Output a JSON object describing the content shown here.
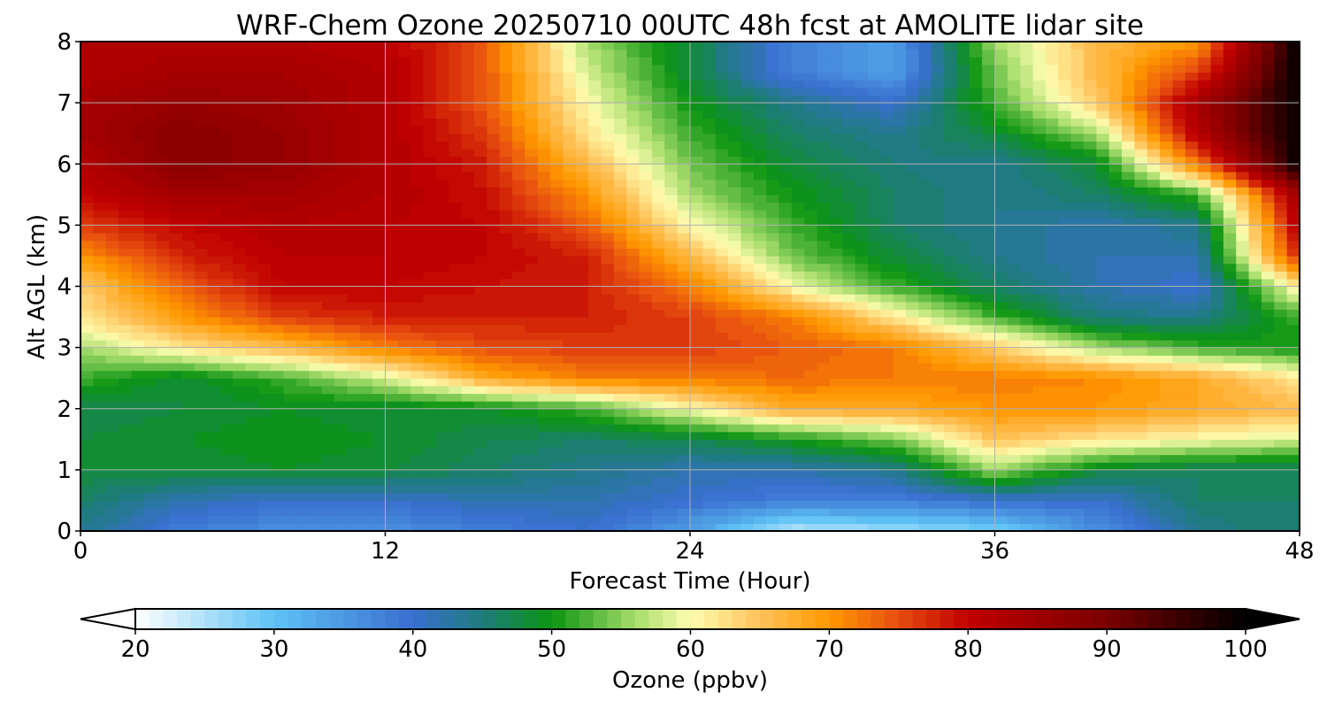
{
  "chart_data": {
    "type": "heatmap",
    "title": "WRF-Chem Ozone  20250710 00UTC 48h fcst at AMOLITE lidar site",
    "xlabel": "Forecast Time (Hour)",
    "ylabel": "Alt AGL (km)",
    "xlim": [
      0,
      48
    ],
    "ylim": [
      0,
      8
    ],
    "x_ticks": [
      0,
      12,
      24,
      36,
      48
    ],
    "y_ticks": [
      0,
      1,
      2,
      3,
      4,
      5,
      6,
      7,
      8
    ],
    "grid": true,
    "x": [
      0,
      4,
      8,
      12,
      16,
      20,
      24,
      28,
      32,
      36,
      40,
      44,
      48
    ],
    "y": [
      0,
      0.5,
      1,
      1.5,
      2,
      2.5,
      3,
      3.5,
      4,
      4.5,
      5,
      5.5,
      6,
      6.5,
      7,
      7.5,
      8
    ],
    "z": [
      [
        44,
        38,
        36,
        36,
        38,
        40,
        34,
        24,
        26,
        28,
        36,
        44,
        46
      ],
      [
        46,
        42,
        40,
        40,
        42,
        42,
        40,
        38,
        38,
        40,
        40,
        46,
        46
      ],
      [
        48,
        48,
        49,
        48,
        46,
        44,
        42,
        42,
        44,
        56,
        48,
        46,
        46
      ],
      [
        48,
        49,
        50,
        49,
        47,
        46,
        47,
        50,
        54,
        65,
        62,
        60,
        58
      ],
      [
        47,
        48,
        49,
        48,
        49,
        52,
        60,
        68,
        68,
        70,
        70,
        68,
        66
      ],
      [
        52,
        48,
        52,
        58,
        68,
        72,
        72,
        73,
        72,
        72,
        71,
        68,
        62
      ],
      [
        56,
        62,
        66,
        72,
        75,
        76,
        76,
        74,
        72,
        64,
        56,
        52,
        50
      ],
      [
        62,
        70,
        76,
        78,
        78,
        78,
        76,
        72,
        62,
        52,
        45,
        44,
        52
      ],
      [
        64,
        74,
        80,
        80,
        79,
        78,
        72,
        60,
        52,
        46,
        42,
        40,
        62
      ],
      [
        70,
        78,
        81,
        81,
        80,
        78,
        66,
        54,
        48,
        44,
        42,
        42,
        78
      ],
      [
        76,
        80,
        82,
        81,
        80,
        74,
        60,
        52,
        46,
        44,
        42,
        44,
        82
      ],
      [
        80,
        84,
        84,
        82,
        79,
        70,
        56,
        50,
        46,
        44,
        46,
        52,
        85
      ],
      [
        82,
        88,
        86,
        82,
        78,
        66,
        54,
        48,
        45,
        44,
        48,
        72,
        100
      ],
      [
        84,
        88,
        86,
        82,
        76,
        62,
        52,
        46,
        44,
        48,
        56,
        82,
        100
      ],
      [
        84,
        86,
        85,
        82,
        74,
        60,
        50,
        44,
        40,
        52,
        64,
        84,
        100
      ],
      [
        82,
        84,
        84,
        82,
        74,
        58,
        48,
        38,
        34,
        54,
        66,
        76,
        100
      ],
      [
        82,
        82,
        82,
        81,
        74,
        56,
        48,
        38,
        34,
        56,
        66,
        70,
        100
      ]
    ],
    "colorbar": {
      "label": "Ozone  (ppbv)",
      "min": 20,
      "max": 100,
      "ticks": [
        20,
        30,
        40,
        50,
        60,
        70,
        80,
        90,
        100
      ],
      "extend": "both",
      "stops": [
        {
          "v": 20,
          "c": "#ffffff"
        },
        {
          "v": 30,
          "c": "#5ec2f4"
        },
        {
          "v": 40,
          "c": "#3a6fd0"
        },
        {
          "v": 45,
          "c": "#1e7c7c"
        },
        {
          "v": 50,
          "c": "#0b9412"
        },
        {
          "v": 56,
          "c": "#a6dc6a"
        },
        {
          "v": 60,
          "c": "#fdfdb0"
        },
        {
          "v": 65,
          "c": "#ffc25a"
        },
        {
          "v": 70,
          "c": "#ff9900"
        },
        {
          "v": 75,
          "c": "#e64d10"
        },
        {
          "v": 80,
          "c": "#c00000"
        },
        {
          "v": 90,
          "c": "#7a0000"
        },
        {
          "v": 100,
          "c": "#000000"
        }
      ]
    }
  }
}
